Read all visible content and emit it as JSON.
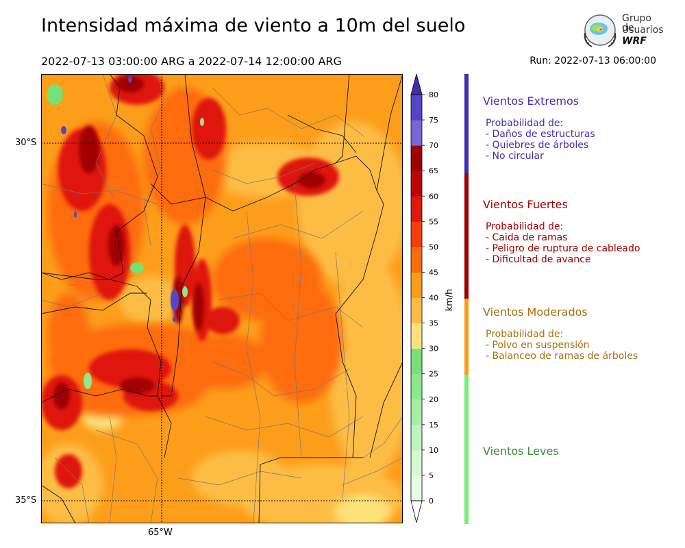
{
  "header": {
    "title": "Intensidad máxima de viento a 10m del suelo",
    "period": "2022-07-13 03:00:00 ARG  a  2022-07-14 12:00:00 ARG",
    "run": "Run: 2022-07-13 06:00:00"
  },
  "logo": {
    "line1": "Grupo de",
    "line2": "Usuarios",
    "line3": "WRF"
  },
  "map": {
    "lat_labels": [
      "30°S",
      "35°S"
    ],
    "lon_labels": [
      "65°W"
    ]
  },
  "colorbar": {
    "unit": "km/h",
    "ticks": [
      "0",
      "5",
      "10",
      "15",
      "20",
      "25",
      "30",
      "35",
      "40",
      "45",
      "50",
      "55",
      "60",
      "65",
      "70",
      "75",
      "80"
    ],
    "colors": [
      "#e6ffe6",
      "#d3fbd3",
      "#bdf5bd",
      "#a6f0a6",
      "#8ee88e",
      "#78e078",
      "#fde27a",
      "#fdbd45",
      "#fd9e1b",
      "#fd6c0a",
      "#fb3e08",
      "#df1808",
      "#bf0505",
      "#a00000",
      "#7866d8",
      "#5546c8",
      "#3f2fb0"
    ]
  },
  "categories": [
    {
      "title": "Vientos Extremos",
      "color": "#3f2fb0",
      "desc": [
        "Probabilidad de:",
        "- Daños de estructuras",
        "- Quiebres de árboles",
        "- No circular"
      ]
    },
    {
      "title": "Vientos Fuertes",
      "color": "#a00000",
      "desc": [
        "Probabilidad de:",
        "- Caida de ramas",
        "- Peligro de ruptura de cableado",
        "- Dificultad de avance"
      ]
    },
    {
      "title": "Vientos Moderados",
      "color": "#a8700a",
      "desc": [
        "Probabilidad de:",
        "- Polvo en suspensión",
        "- Balanceo de ramas de árboles"
      ]
    },
    {
      "title": "Vientos Leves",
      "color": "#3c8a3c",
      "desc": []
    }
  ],
  "bands": {
    "extreme": "#3f2fb0",
    "strong": "#a00000",
    "moderate": "#fd9e1b",
    "light": "#7af07a"
  }
}
